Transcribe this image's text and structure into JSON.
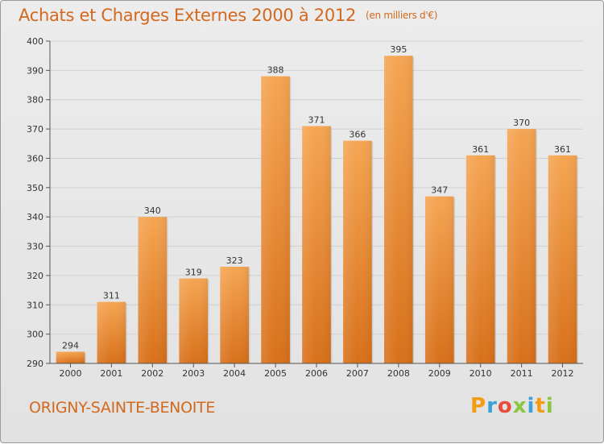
{
  "header": {
    "title": "Achats et Charges Externes 2000 à 2012",
    "unit": "(en milliers d'€)"
  },
  "footer": {
    "commune": "ORIGNY-SAINTE-BENOITE",
    "logo_letters": [
      "P",
      "r",
      "o",
      "x",
      "i",
      "t",
      "i"
    ],
    "logo_colors": [
      "#f39c12",
      "#3aa2d8",
      "#e74c3c",
      "#8cc63f",
      "#3aa2d8",
      "#f39c12",
      "#8cc63f"
    ]
  },
  "chart_data": {
    "type": "bar",
    "categories": [
      "2000",
      "2001",
      "2002",
      "2003",
      "2004",
      "2005",
      "2006",
      "2007",
      "2008",
      "2009",
      "2010",
      "2011",
      "2012"
    ],
    "values": [
      294,
      311,
      340,
      319,
      323,
      388,
      371,
      366,
      395,
      347,
      361,
      370,
      361
    ],
    "ylim": [
      290,
      400
    ],
    "yticks": [
      290,
      300,
      310,
      320,
      330,
      340,
      350,
      360,
      370,
      380,
      390,
      400
    ],
    "grid": true,
    "bar_color": "#e8802a"
  }
}
